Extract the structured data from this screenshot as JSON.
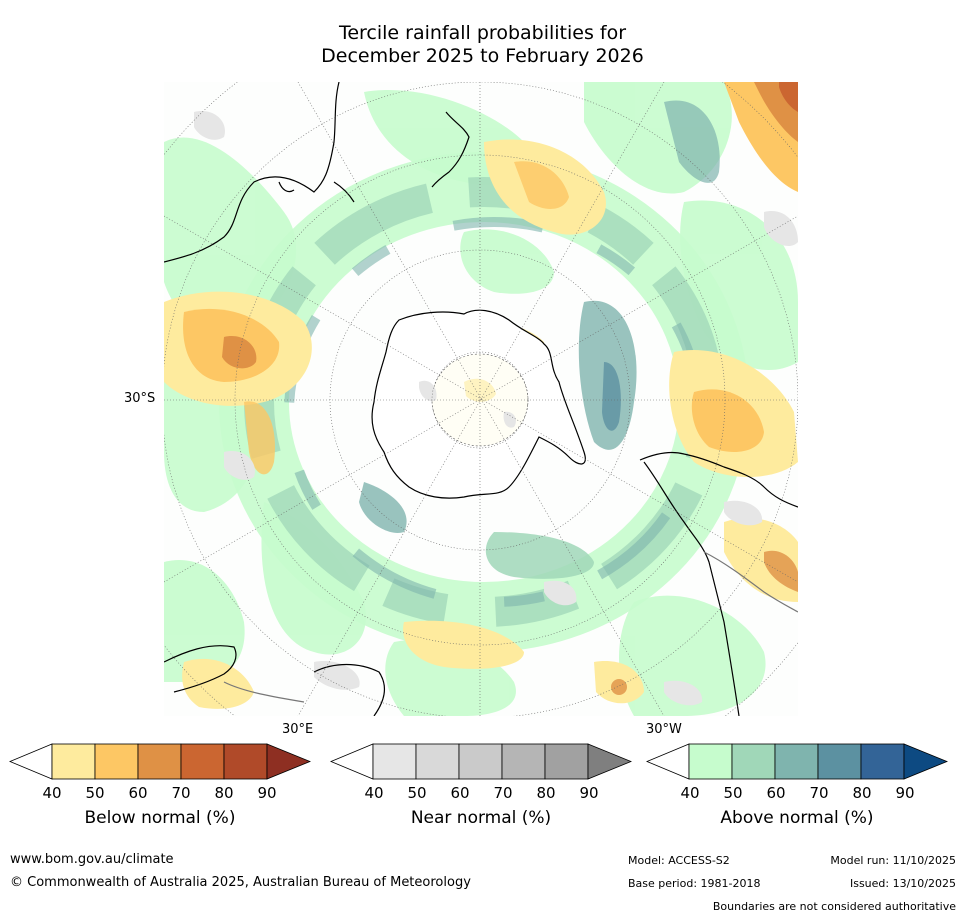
{
  "title": {
    "line1": "Tercile rainfall probabilities for",
    "line2": "December 2025 to February 2026"
  },
  "map": {
    "projection": "south-polar-stereographic",
    "lat_labels": {
      "lat_30s": "30°S",
      "lon_30e": "30°E",
      "lon_30w": "30°W"
    }
  },
  "colorbars": [
    {
      "id": "below",
      "label": "Below normal (%)",
      "ticks": [
        "40",
        "50",
        "60",
        "70",
        "80",
        "90"
      ],
      "colors": [
        "#ffffff",
        "#feeb9e",
        "#fdc764",
        "#df9145",
        "#cb6631",
        "#b04a29",
        "#8e2f22"
      ]
    },
    {
      "id": "near",
      "label": "Near normal (%)",
      "ticks": [
        "40",
        "50",
        "60",
        "70",
        "80",
        "90"
      ],
      "colors": [
        "#ffffff",
        "#e6e6e6",
        "#d9d9d9",
        "#cacaca",
        "#b5b5b5",
        "#a1a1a1",
        "#7f7f7f"
      ]
    },
    {
      "id": "above",
      "label": "Above normal (%)",
      "ticks": [
        "40",
        "50",
        "60",
        "70",
        "80",
        "90"
      ],
      "colors": [
        "#ffffff",
        "#c6fccd",
        "#a0d7b8",
        "#7fb4ae",
        "#5c91a1",
        "#336497",
        "#0d4a82"
      ]
    }
  ],
  "footer": {
    "url": "www.bom.gov.au/climate",
    "copyright": "© Commonwealth of Australia 2025, Australian Bureau of Meteorology",
    "model": "Model: ACCESS-S2",
    "base_period": "Base period: 1981-2018",
    "model_run": "Model run: 11/10/2025",
    "issued": "Issued: 13/10/2025",
    "disclaimer": "Boundaries are not considered authoritative"
  }
}
